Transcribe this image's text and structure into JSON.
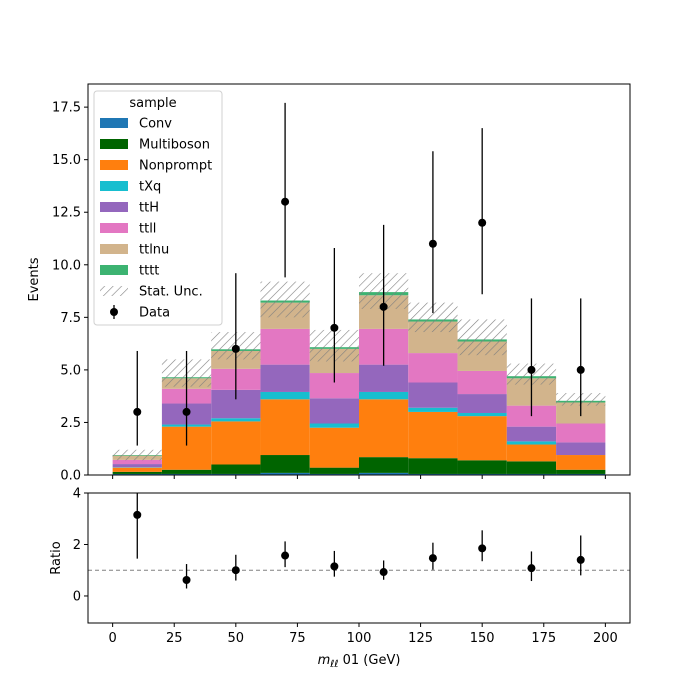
{
  "chart_data": [
    {
      "type": "bar",
      "stacked": true,
      "bin_edges": [
        0,
        20,
        40,
        60,
        80,
        100,
        120,
        140,
        160,
        180,
        200
      ],
      "x": [
        10,
        30,
        50,
        70,
        90,
        110,
        130,
        150,
        170,
        190
      ],
      "xlim": [
        -10,
        210
      ],
      "ylim": [
        0,
        18.6
      ],
      "ylabel": "Events",
      "y_ticks": [
        "0.0",
        "2.5",
        "5.0",
        "7.5",
        "10.0",
        "12.5",
        "15.0",
        "17.5"
      ],
      "y_tick_values": [
        0,
        2.5,
        5,
        7.5,
        10,
        12.5,
        15,
        17.5
      ],
      "legend_title": "sample",
      "legend_position": "upper-left",
      "series": [
        {
          "name": "Conv",
          "color": "#1f77b4",
          "values": [
            0.05,
            0.05,
            0.05,
            0.1,
            0.05,
            0.1,
            0.05,
            0.05,
            0.05,
            0.05
          ]
        },
        {
          "name": "Multiboson",
          "color": "#006400",
          "values": [
            0.1,
            0.2,
            0.45,
            0.85,
            0.3,
            0.75,
            0.75,
            0.65,
            0.6,
            0.2
          ]
        },
        {
          "name": "Nonprompt",
          "color": "#ff7f0e",
          "values": [
            0.2,
            2.05,
            2.05,
            2.65,
            1.9,
            2.75,
            2.2,
            2.1,
            0.8,
            0.7
          ]
        },
        {
          "name": "tXq",
          "color": "#17becf",
          "values": [
            0.02,
            0.1,
            0.15,
            0.35,
            0.2,
            0.35,
            0.2,
            0.15,
            0.15,
            0.0
          ]
        },
        {
          "name": "ttH",
          "color": "#9467bd",
          "values": [
            0.15,
            1.0,
            1.35,
            1.3,
            1.2,
            1.3,
            1.2,
            0.9,
            0.7,
            0.6
          ]
        },
        {
          "name": "ttll",
          "color": "#e377c2",
          "values": [
            0.2,
            0.7,
            1.0,
            1.7,
            1.2,
            1.7,
            1.4,
            1.1,
            1.0,
            0.9
          ]
        },
        {
          "name": "ttlnu",
          "color": "#d2b48c",
          "values": [
            0.2,
            0.5,
            0.85,
            1.25,
            1.15,
            1.6,
            1.5,
            1.4,
            1.3,
            1.0
          ]
        },
        {
          "name": "tttt",
          "color": "#3cb371",
          "values": [
            0.03,
            0.05,
            0.08,
            0.1,
            0.08,
            0.15,
            0.1,
            0.1,
            0.1,
            0.08
          ]
        }
      ],
      "stat_unc": {
        "name": "Stat. Unc.",
        "down": [
          0.7,
          4.2,
          5.5,
          7.5,
          5.4,
          7.9,
          6.8,
          5.7,
          4.3,
          3.3
        ],
        "up": [
          1.2,
          5.5,
          6.8,
          9.2,
          6.9,
          9.6,
          8.2,
          7.4,
          5.3,
          3.9
        ]
      },
      "data": {
        "name": "Data",
        "values": [
          3,
          3,
          6,
          13,
          7,
          8,
          11,
          12,
          5,
          5
        ],
        "err_low": [
          1.6,
          1.6,
          2.4,
          3.6,
          2.6,
          2.8,
          3.3,
          3.4,
          2.2,
          2.2
        ],
        "err_high": [
          2.9,
          2.9,
          3.6,
          4.7,
          3.8,
          3.9,
          4.4,
          4.5,
          3.4,
          3.4
        ]
      }
    },
    {
      "type": "scatter",
      "x": [
        10,
        30,
        50,
        70,
        90,
        110,
        130,
        150,
        170,
        190
      ],
      "values": [
        3.15,
        0.62,
        1.0,
        1.57,
        1.15,
        0.93,
        1.47,
        1.85,
        1.08,
        1.4
      ],
      "err_low": [
        1.7,
        0.33,
        0.4,
        0.45,
        0.4,
        0.3,
        0.45,
        0.5,
        0.5,
        0.6
      ],
      "err_high": [
        3.0,
        0.62,
        0.6,
        0.55,
        0.6,
        0.45,
        0.6,
        0.7,
        0.65,
        0.95
      ],
      "xlim": [
        -10,
        210
      ],
      "ylim": [
        -1.05,
        4
      ],
      "reference_line": 1,
      "ylabel": "Ratio",
      "xlabel_prefix": "m",
      "xlabel_subscript": "ℓℓ",
      "xlabel_suffix": " 01 (GeV)",
      "x_ticks": [
        "0",
        "25",
        "50",
        "75",
        "100",
        "125",
        "150",
        "175",
        "200"
      ],
      "x_tick_values": [
        0,
        25,
        50,
        75,
        100,
        125,
        150,
        175,
        200
      ],
      "y_ticks": [
        "0",
        "2",
        "4"
      ],
      "y_tick_values": [
        0,
        2,
        4
      ]
    }
  ]
}
